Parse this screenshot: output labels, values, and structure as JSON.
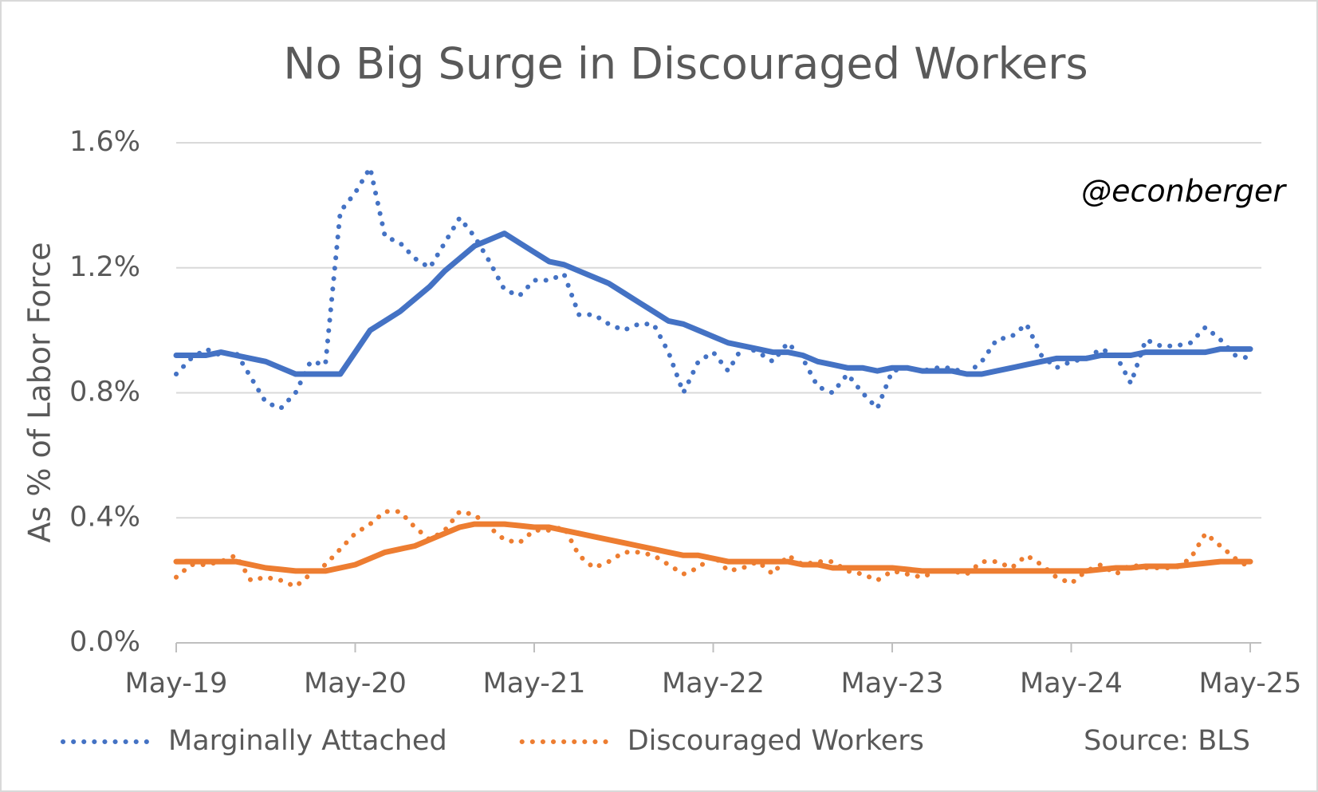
{
  "chart_data": {
    "type": "line",
    "title": "No Big Surge in Discouraged Workers",
    "y_label": "As % of Labor Force",
    "annotation": "@econberger",
    "source": "Source: BLS",
    "categories": [
      "May-19",
      null,
      null,
      null,
      null,
      null,
      null,
      null,
      null,
      null,
      null,
      null,
      "May-20",
      null,
      null,
      null,
      null,
      null,
      null,
      null,
      null,
      null,
      null,
      null,
      "May-21",
      null,
      null,
      null,
      null,
      null,
      null,
      null,
      null,
      null,
      null,
      null,
      "May-22",
      null,
      null,
      null,
      null,
      null,
      null,
      null,
      null,
      null,
      null,
      null,
      "May-23",
      null,
      null,
      null,
      null,
      null,
      null,
      null,
      null,
      null,
      null,
      null,
      "May-24",
      null,
      null,
      null,
      null,
      null,
      null,
      null,
      null,
      null,
      null,
      null,
      "May-25"
    ],
    "ylim": [
      0,
      1.6
    ],
    "yticks": [
      {
        "value": 0,
        "label": "0.0%"
      },
      {
        "value": 0.4,
        "label": "0.4%"
      },
      {
        "value": 0.8,
        "label": "0.8%"
      },
      {
        "value": 1.2,
        "label": "1.2%"
      },
      {
        "value": 1.6,
        "label": "1.6%"
      }
    ],
    "grid": true,
    "legend": "bottom",
    "series": [
      {
        "name": "Marginally Attached",
        "color": "#4472c4",
        "style": "dotted",
        "values": [
          0.86,
          0.91,
          0.94,
          0.92,
          0.93,
          0.85,
          0.77,
          0.75,
          0.8,
          0.9,
          0.89,
          1.38,
          1.44,
          1.52,
          1.3,
          1.28,
          1.23,
          1.2,
          1.28,
          1.36,
          1.3,
          1.22,
          1.13,
          1.11,
          1.16,
          1.16,
          1.18,
          1.05,
          1.05,
          1.02,
          1.0,
          1.02,
          1.02,
          0.93,
          0.8,
          0.9,
          0.93,
          0.87,
          0.95,
          0.93,
          0.9,
          0.96,
          0.91,
          0.82,
          0.8,
          0.86,
          0.8,
          0.75,
          0.87,
          0.88,
          0.87,
          0.88,
          0.88,
          0.86,
          0.9,
          0.97,
          0.98,
          1.02,
          0.92,
          0.88,
          0.9,
          0.91,
          0.94,
          0.92,
          0.83,
          0.97,
          0.95,
          0.95,
          0.96,
          1.01,
          0.97,
          0.92,
          0.91
        ]
      },
      {
        "name": "Discouraged Workers",
        "color": "#ed7d31",
        "style": "dotted",
        "values": [
          0.21,
          0.25,
          0.25,
          0.26,
          0.28,
          0.2,
          0.21,
          0.2,
          0.18,
          0.22,
          0.25,
          0.3,
          0.35,
          0.38,
          0.42,
          0.42,
          0.37,
          0.33,
          0.36,
          0.42,
          0.41,
          0.37,
          0.33,
          0.32,
          0.36,
          0.36,
          0.37,
          0.28,
          0.24,
          0.26,
          0.29,
          0.29,
          0.28,
          0.25,
          0.22,
          0.24,
          0.28,
          0.23,
          0.24,
          0.26,
          0.22,
          0.28,
          0.25,
          0.26,
          0.26,
          0.23,
          0.22,
          0.2,
          0.23,
          0.22,
          0.21,
          0.23,
          0.23,
          0.22,
          0.26,
          0.26,
          0.24,
          0.28,
          0.25,
          0.21,
          0.19,
          0.23,
          0.25,
          0.22,
          0.25,
          0.24,
          0.24,
          0.24,
          0.27,
          0.35,
          0.31,
          0.27,
          0.24
        ]
      },
      {
        "color": "#4472c4",
        "style": "solid",
        "values": [
          0.92,
          0.92,
          0.92,
          0.93,
          0.92,
          0.91,
          0.9,
          0.88,
          0.86,
          0.86,
          0.86,
          0.86,
          0.93,
          1.0,
          1.03,
          1.06,
          1.1,
          1.14,
          1.19,
          1.23,
          1.27,
          1.29,
          1.31,
          1.28,
          1.25,
          1.22,
          1.21,
          1.19,
          1.17,
          1.15,
          1.12,
          1.09,
          1.06,
          1.03,
          1.02,
          1.0,
          0.98,
          0.96,
          0.95,
          0.94,
          0.93,
          0.93,
          0.92,
          0.9,
          0.89,
          0.88,
          0.88,
          0.87,
          0.88,
          0.88,
          0.87,
          0.87,
          0.87,
          0.86,
          0.86,
          0.87,
          0.88,
          0.89,
          0.9,
          0.91,
          0.91,
          0.91,
          0.92,
          0.92,
          0.92,
          0.93,
          0.93,
          0.93,
          0.93,
          0.93,
          0.94,
          0.94,
          0.94
        ]
      },
      {
        "color": "#ed7d31",
        "style": "solid",
        "values": [
          0.26,
          0.26,
          0.26,
          0.26,
          0.26,
          0.25,
          0.24,
          0.235,
          0.23,
          0.23,
          0.23,
          0.24,
          0.25,
          0.27,
          0.29,
          0.3,
          0.31,
          0.33,
          0.35,
          0.37,
          0.38,
          0.38,
          0.38,
          0.375,
          0.37,
          0.37,
          0.36,
          0.35,
          0.34,
          0.33,
          0.32,
          0.31,
          0.3,
          0.29,
          0.28,
          0.28,
          0.27,
          0.26,
          0.26,
          0.26,
          0.26,
          0.26,
          0.25,
          0.25,
          0.24,
          0.24,
          0.24,
          0.24,
          0.24,
          0.235,
          0.23,
          0.23,
          0.23,
          0.23,
          0.23,
          0.23,
          0.23,
          0.23,
          0.23,
          0.23,
          0.23,
          0.23,
          0.235,
          0.24,
          0.24,
          0.245,
          0.245,
          0.245,
          0.25,
          0.255,
          0.26,
          0.26,
          0.26
        ]
      }
    ]
  }
}
